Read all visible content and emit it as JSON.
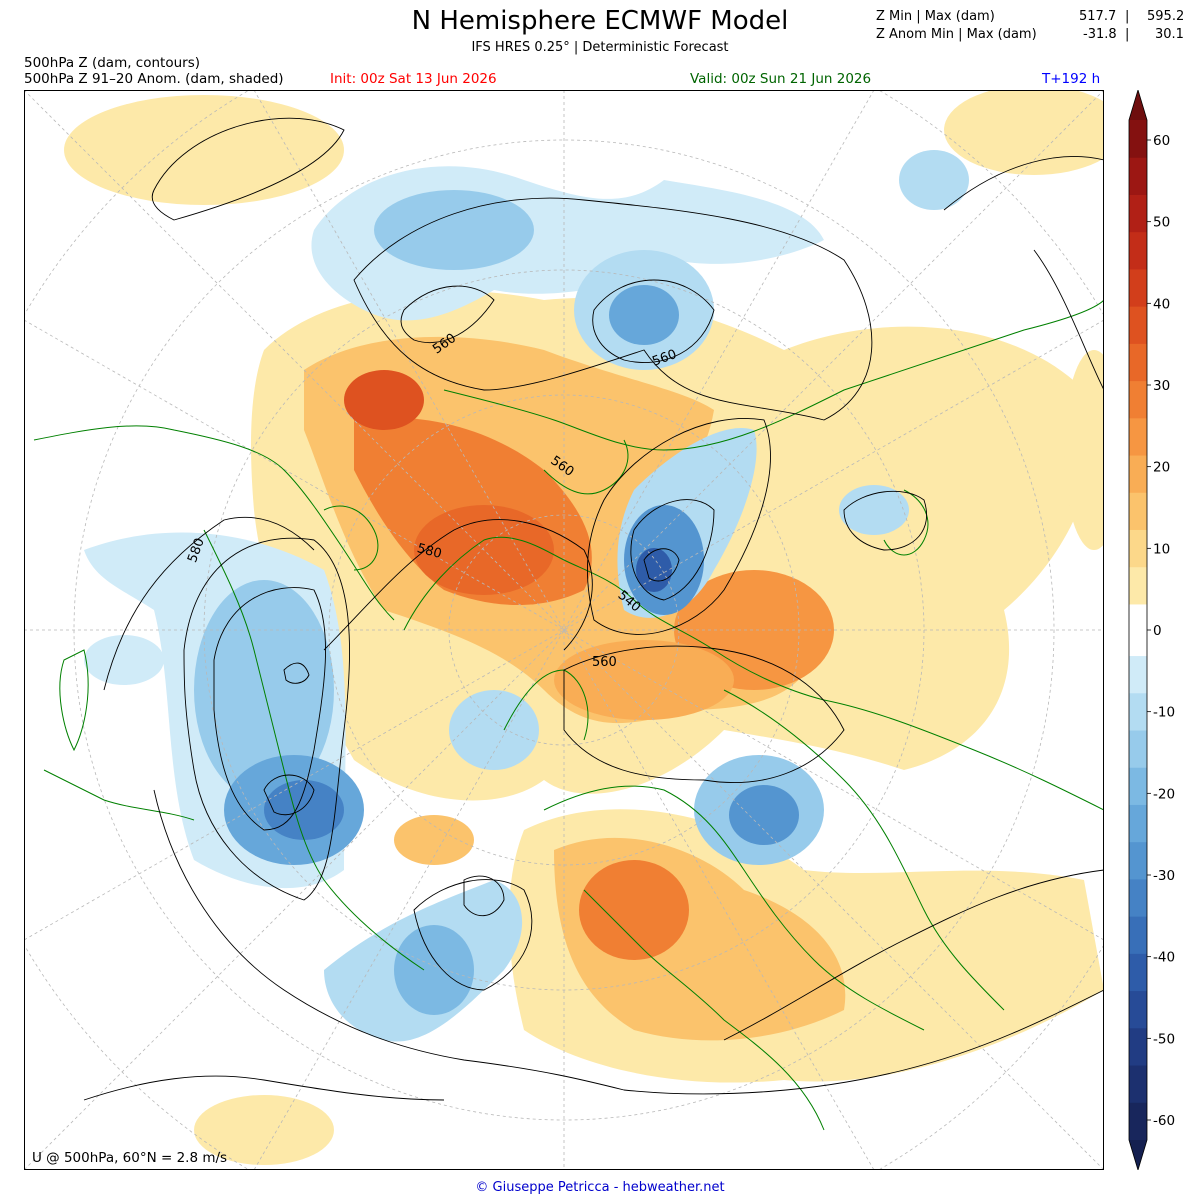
{
  "header": {
    "title": "N Hemisphere ECMWF Model",
    "subtitle": "IFS HRES 0.25° | Deterministic Forecast",
    "field_line1": "500hPa Z (dam, contours)",
    "field_line2": "500hPa Z 91–20 Anom. (dam, shaded)",
    "init": "Init: 00z Sat 13 Jun 2026",
    "valid": "Valid: 00z Sun 21 Jun 2026",
    "lead": "T+192 h",
    "init_color": "#ff0000",
    "valid_color": "#006400",
    "lead_color": "#0000ff"
  },
  "stats": {
    "z_label": "Z Min | Max (dam)",
    "z_min": "517.7",
    "z_max": "595.2",
    "anom_label": "Z Anom Min | Max (dam)",
    "anom_min": "-31.8",
    "anom_max": "30.1",
    "sep": "|"
  },
  "map": {
    "projection": "north-polar-stereographic",
    "coastline_color": "#008000",
    "contour_color": "#000000",
    "contour_labels": [
      "560",
      "560",
      "560",
      "580",
      "540",
      "560",
      "580"
    ],
    "wind_note": "U @ 500hPa, 60°N =  2.8 m/s"
  },
  "colorbar": {
    "ticks": [
      "60",
      "50",
      "40",
      "30",
      "20",
      "10",
      "0",
      "-10",
      "-20",
      "-30",
      "-40",
      "-50",
      "-60"
    ],
    "warm_colors": [
      "#fde9a9",
      "#fcd88a",
      "#fbc36c",
      "#f9ad55",
      "#f69642",
      "#f07f33",
      "#e86828",
      "#de5220",
      "#d23e1b",
      "#c32d18",
      "#b12016",
      "#9c1713",
      "#841110"
    ],
    "cool_colors": [
      "#d0ebf8",
      "#b3dcf2",
      "#97cbeb",
      "#7cb9e3",
      "#66a7da",
      "#5495d0",
      "#4582c5",
      "#386fb8",
      "#2e5ca9",
      "#274b97",
      "#213c83",
      "#1c306f",
      "#18265c"
    ]
  },
  "credit": "© Giuseppe Petricca - hebweather.net"
}
